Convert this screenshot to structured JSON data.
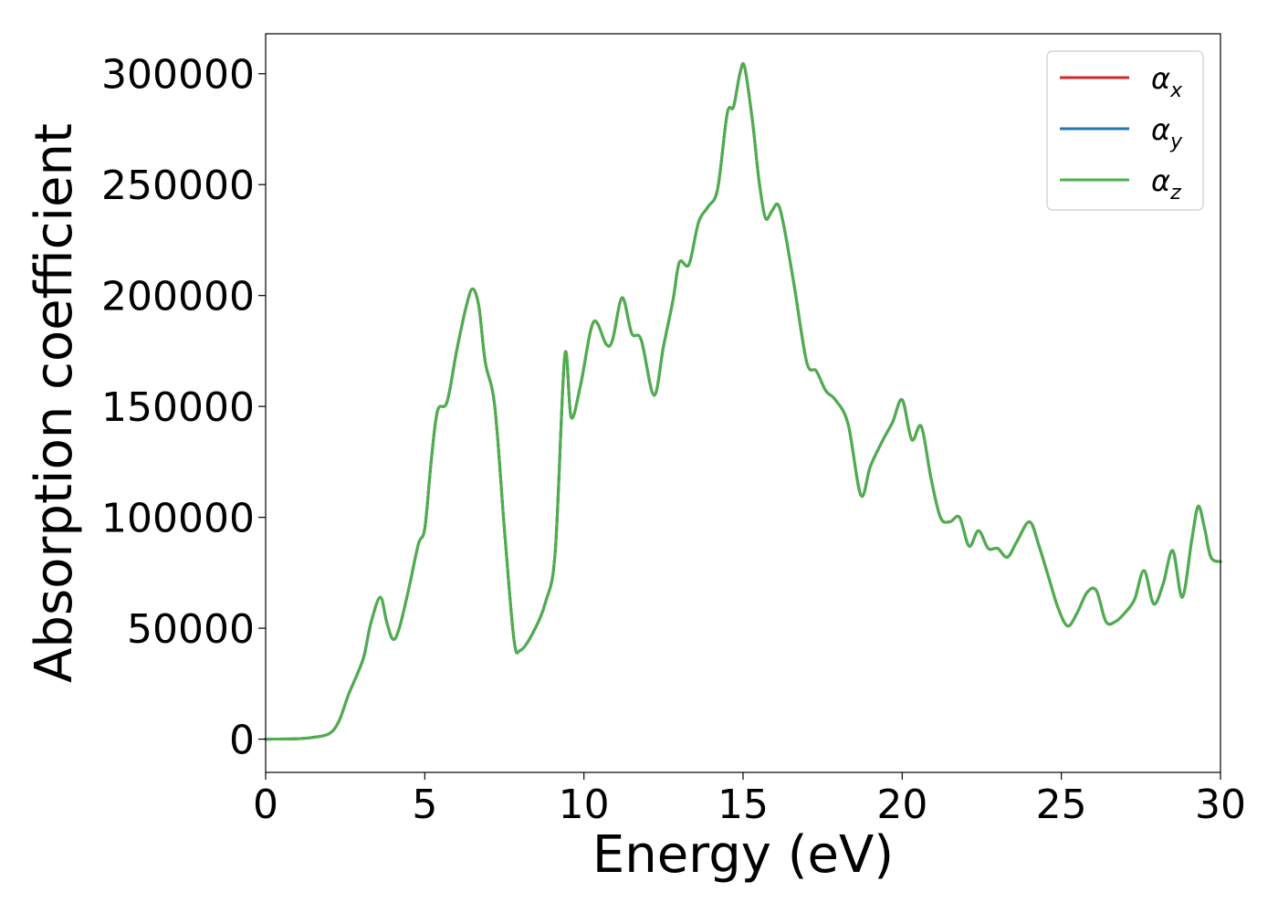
{
  "chart_data": {
    "type": "line",
    "title": "",
    "xlabel": "Energy (eV)",
    "ylabel": "Absorption coefficient",
    "xlim": [
      0,
      30
    ],
    "ylim": [
      -15000,
      318000
    ],
    "xticks": [
      0,
      5,
      10,
      15,
      20,
      25,
      30
    ],
    "yticks": [
      0,
      50000,
      100000,
      150000,
      200000,
      250000,
      300000
    ],
    "xtick_labels": [
      "0",
      "5",
      "10",
      "15",
      "20",
      "25",
      "30"
    ],
    "ytick_labels": [
      "0",
      "50000",
      "100000",
      "150000",
      "200000",
      "250000",
      "300000"
    ],
    "grid": false,
    "legend_position": "top-right",
    "legend": [
      {
        "symbol": "α",
        "subscript": "x",
        "color": "#d62728"
      },
      {
        "symbol": "α",
        "subscript": "y",
        "color": "#1f77b4"
      },
      {
        "symbol": "α",
        "subscript": "z",
        "color": "#4daf4a"
      }
    ],
    "x": [
      0,
      1,
      1.5,
      2,
      2.3,
      2.6,
      2.9,
      3.1,
      3.3,
      3.6,
      3.8,
      4.0,
      4.2,
      4.5,
      4.8,
      5.0,
      5.2,
      5.4,
      5.7,
      6.0,
      6.3,
      6.5,
      6.7,
      6.9,
      7.2,
      7.5,
      7.8,
      8.0,
      8.4,
      8.8,
      9.1,
      9.4,
      9.6,
      9.9,
      10.3,
      10.7,
      10.9,
      11.2,
      11.5,
      11.8,
      12.2,
      12.5,
      12.8,
      13.0,
      13.3,
      13.6,
      13.9,
      14.2,
      14.5,
      14.7,
      14.9,
      15.05,
      15.3,
      15.5,
      15.7,
      15.9,
      16.1,
      16.3,
      16.6,
      17.0,
      17.3,
      17.6,
      17.9,
      18.3,
      18.7,
      19.0,
      19.4,
      19.7,
      20.0,
      20.3,
      20.6,
      20.9,
      21.2,
      21.5,
      21.8,
      22.1,
      22.4,
      22.7,
      23.0,
      23.3,
      23.6,
      24.0,
      24.3,
      24.6,
      24.9,
      25.2,
      25.5,
      25.8,
      26.1,
      26.4,
      26.7,
      27.0,
      27.3,
      27.6,
      27.9,
      28.2,
      28.5,
      28.8,
      29.1,
      29.3,
      29.5,
      29.7,
      30.0
    ],
    "series": [
      {
        "name": "α_x",
        "color": "#d62728",
        "values": [
          0,
          200,
          800,
          2500,
          8000,
          20000,
          30000,
          38000,
          52000,
          64000,
          53000,
          45000,
          50000,
          68000,
          88000,
          95000,
          125000,
          148000,
          152000,
          175000,
          195000,
          203000,
          195000,
          170000,
          150000,
          95000,
          45000,
          40000,
          48000,
          62000,
          85000,
          173000,
          145000,
          160000,
          188000,
          178000,
          180000,
          199000,
          183000,
          180000,
          155000,
          177000,
          198000,
          215000,
          214000,
          233000,
          240000,
          248000,
          282000,
          285000,
          300000,
          303000,
          278000,
          252000,
          235000,
          238000,
          241000,
          230000,
          205000,
          170000,
          166000,
          157000,
          153000,
          142000,
          110000,
          123000,
          135000,
          143000,
          153000,
          135000,
          141000,
          118000,
          100000,
          98000,
          100000,
          87000,
          94000,
          86000,
          86000,
          82000,
          89000,
          98000,
          87000,
          73000,
          59000,
          51000,
          57000,
          66000,
          67000,
          53000,
          53000,
          57000,
          63000,
          76000,
          61000,
          70000,
          85000,
          64000,
          90000,
          105000,
          95000,
          82000,
          80000
        ]
      },
      {
        "name": "α_y",
        "color": "#1f77b4",
        "values": [
          0,
          200,
          800,
          2500,
          8000,
          20000,
          30000,
          38000,
          52000,
          64000,
          53000,
          45000,
          50000,
          68000,
          88000,
          95000,
          125000,
          148000,
          152000,
          175000,
          195000,
          203000,
          195000,
          170000,
          150000,
          95000,
          45000,
          40000,
          48000,
          62000,
          85000,
          173000,
          145000,
          160000,
          188000,
          178000,
          180000,
          199000,
          183000,
          180000,
          155000,
          177000,
          198000,
          215000,
          214000,
          233000,
          240000,
          248000,
          282000,
          285000,
          300000,
          303000,
          278000,
          252000,
          235000,
          238000,
          241000,
          230000,
          205000,
          170000,
          166000,
          157000,
          153000,
          142000,
          110000,
          123000,
          135000,
          143000,
          153000,
          135000,
          141000,
          118000,
          100000,
          98000,
          100000,
          87000,
          94000,
          86000,
          86000,
          82000,
          89000,
          98000,
          87000,
          73000,
          59000,
          51000,
          57000,
          66000,
          67000,
          53000,
          53000,
          57000,
          63000,
          76000,
          61000,
          70000,
          85000,
          64000,
          90000,
          105000,
          95000,
          82000,
          80000
        ]
      },
      {
        "name": "α_z",
        "color": "#4daf4a",
        "values": [
          0,
          200,
          800,
          2500,
          8000,
          20000,
          30000,
          38000,
          52000,
          64000,
          53000,
          45000,
          50000,
          68000,
          88000,
          95000,
          125000,
          148000,
          152000,
          175000,
          195000,
          203000,
          195000,
          170000,
          150000,
          95000,
          45000,
          40000,
          48000,
          62000,
          85000,
          173000,
          145000,
          160000,
          188000,
          178000,
          180000,
          199000,
          183000,
          180000,
          155000,
          177000,
          198000,
          215000,
          214000,
          233000,
          240000,
          248000,
          282000,
          285000,
          300000,
          303000,
          278000,
          252000,
          235000,
          238000,
          241000,
          230000,
          205000,
          170000,
          166000,
          157000,
          153000,
          142000,
          110000,
          123000,
          135000,
          143000,
          153000,
          135000,
          141000,
          118000,
          100000,
          98000,
          100000,
          87000,
          94000,
          86000,
          86000,
          82000,
          89000,
          98000,
          87000,
          73000,
          59000,
          51000,
          57000,
          66000,
          67000,
          53000,
          53000,
          57000,
          63000,
          76000,
          61000,
          70000,
          85000,
          64000,
          90000,
          105000,
          95000,
          82000,
          80000
        ]
      }
    ]
  }
}
